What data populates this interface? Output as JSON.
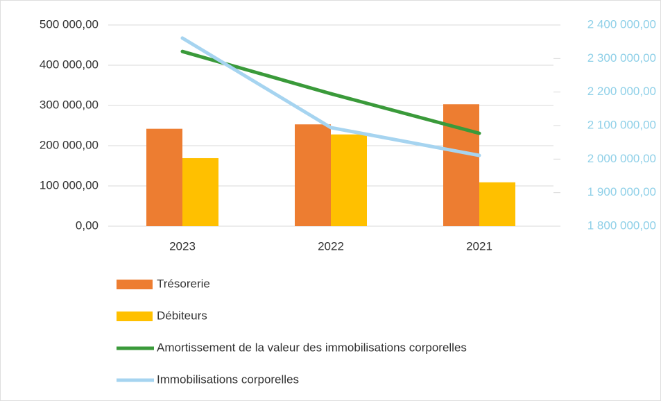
{
  "chart_data": {
    "type": "bar-line",
    "categories": [
      "2023",
      "2022",
      "2021"
    ],
    "series": [
      {
        "name": "Trésorerie",
        "type": "bar",
        "color": "#ed7d31",
        "values": [
          242000,
          253000,
          303000
        ]
      },
      {
        "name": "Débiteurs",
        "type": "bar",
        "color": "#ffc000",
        "values": [
          169000,
          228000,
          109000
        ]
      },
      {
        "name": "Amortissement de la valeur des immobilisations corporelles",
        "type": "line",
        "axis": "y2",
        "color": "#3a9a3a",
        "values": [
          2321000,
          2195000,
          2077000
        ]
      },
      {
        "name": "Immobilisations corporelles",
        "type": "line",
        "axis": "y2",
        "color": "#a6d4f0",
        "values": [
          2361000,
          2094000,
          2011000
        ]
      }
    ],
    "ylim": [
      0,
      500000
    ],
    "yticks": [
      {
        "value": 0,
        "label": "0,00"
      },
      {
        "value": 100000,
        "label": "100 000,00"
      },
      {
        "value": 200000,
        "label": "200 000,00"
      },
      {
        "value": 300000,
        "label": "300 000,00"
      },
      {
        "value": 400000,
        "label": "400 000,00"
      },
      {
        "value": 500000,
        "label": "500 000,00"
      }
    ],
    "y2lim": [
      1800000,
      2400000
    ],
    "y2ticks": [
      {
        "value": 1800000,
        "label": "1 800 000,00"
      },
      {
        "value": 1900000,
        "label": "1 900 000,00"
      },
      {
        "value": 2000000,
        "label": "2 000 000,00"
      },
      {
        "value": 2100000,
        "label": "2 100 000,00"
      },
      {
        "value": 2200000,
        "label": "2 200 000,00"
      },
      {
        "value": 2300000,
        "label": "2 300 000,00"
      },
      {
        "value": 2400000,
        "label": "2 400 000,00"
      }
    ],
    "grid": true,
    "legend": "bottom",
    "y2color": "#8fd0e8"
  }
}
